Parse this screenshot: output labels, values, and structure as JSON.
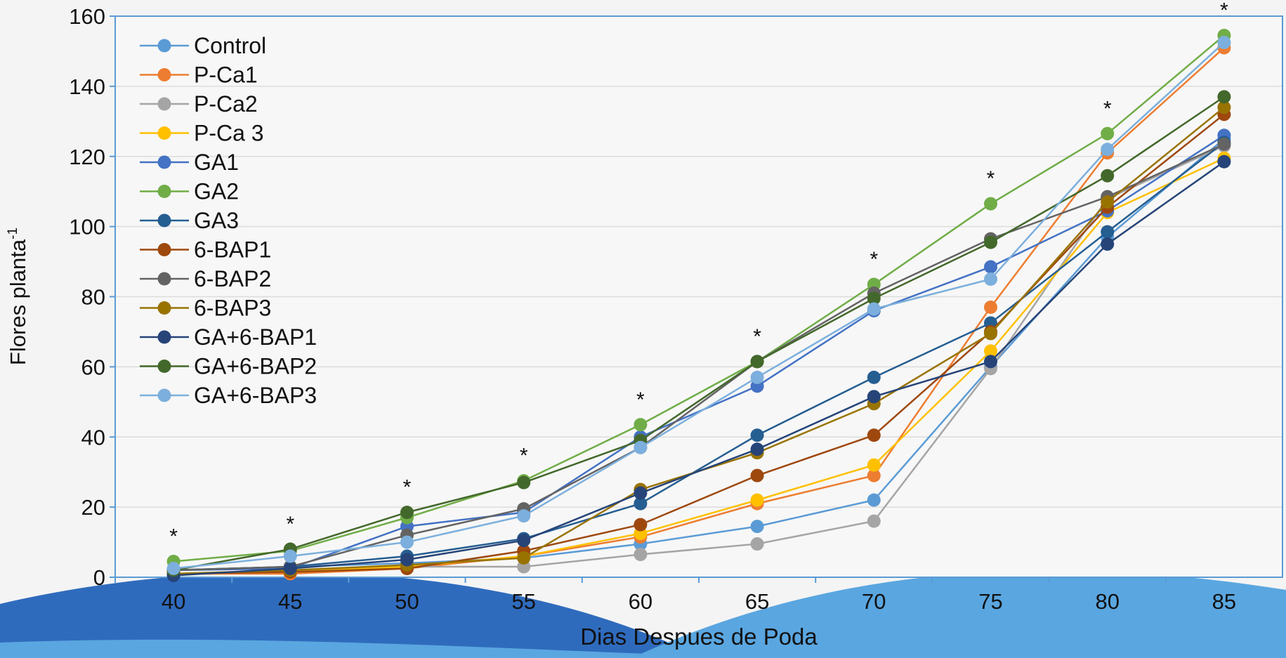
{
  "chart_data": {
    "type": "line",
    "x_label": "Dias Despues de Poda",
    "y_label": "Flores planta",
    "y_label_sup": "-1",
    "categories": [
      "40",
      "45",
      "50",
      "55",
      "60",
      "65",
      "70",
      "75",
      "80",
      "85"
    ],
    "significance": [
      "*",
      "*",
      "*",
      "*",
      "*",
      "*",
      "*",
      "*",
      "*",
      "*"
    ],
    "ylim": [
      0,
      160
    ],
    "yticks": [
      0,
      20,
      40,
      60,
      80,
      100,
      120,
      140,
      160
    ],
    "grid": true,
    "legend": "upper-left",
    "series": [
      {
        "name": "Control",
        "color": "#5b9bd5",
        "values": [
          2,
          3,
          4,
          5.5,
          9.5,
          14.5,
          22,
          60,
          97,
          125
        ]
      },
      {
        "name": "P-Ca1",
        "color": "#ed7d31",
        "values": [
          1,
          1,
          2.5,
          6,
          11.5,
          21,
          29,
          77,
          121,
          151
        ]
      },
      {
        "name": "P-Ca2",
        "color": "#a5a5a5",
        "values": [
          1,
          1.5,
          3,
          3,
          6.5,
          9.5,
          16,
          59.5,
          108,
          123
        ]
      },
      {
        "name": "P-Ca 3",
        "color": "#ffc000",
        "values": [
          1,
          1.5,
          3,
          6,
          12.5,
          22,
          32,
          64.5,
          104,
          119.5
        ]
      },
      {
        "name": "GA1",
        "color": "#4472c4",
        "values": [
          2,
          2.5,
          14.5,
          18.5,
          40,
          54.5,
          76,
          88.5,
          104.5,
          126
        ]
      },
      {
        "name": "GA2",
        "color": "#70ad47",
        "values": [
          4.5,
          7.5,
          17,
          27.5,
          43.5,
          61.5,
          83.5,
          106.5,
          126.5,
          154.5
        ]
      },
      {
        "name": "GA3",
        "color": "#255e91",
        "values": [
          2,
          3,
          6,
          11,
          21,
          40.5,
          57,
          72.5,
          98.5,
          124
        ]
      },
      {
        "name": "6-BAP1",
        "color": "#9e480e",
        "values": [
          1,
          1.5,
          2.5,
          7.5,
          15,
          29,
          40.5,
          70,
          105.5,
          132
        ]
      },
      {
        "name": "6-BAP2",
        "color": "#636363",
        "values": [
          2,
          3,
          12,
          19.5,
          37,
          61.5,
          81,
          96.5,
          108.5,
          123.5
        ]
      },
      {
        "name": "6-BAP3",
        "color": "#997300",
        "values": [
          1,
          2,
          3.5,
          5.5,
          25,
          35.5,
          49.5,
          69.5,
          107,
          134
        ]
      },
      {
        "name": "GA+6-BAP1",
        "color": "#264478",
        "values": [
          0.5,
          2.5,
          5,
          10.5,
          24,
          36.5,
          51.5,
          61.5,
          95,
          118.5
        ]
      },
      {
        "name": "GA+6-BAP2",
        "color": "#43682b",
        "values": [
          2,
          8,
          18.5,
          27,
          39,
          61.5,
          79.5,
          95.5,
          114.5,
          137
        ]
      },
      {
        "name": "GA+6-BAP3",
        "color": "#7cafdd",
        "values": [
          2.5,
          6,
          10,
          17.5,
          37,
          57,
          76.5,
          85,
          122,
          152.5
        ]
      }
    ]
  }
}
